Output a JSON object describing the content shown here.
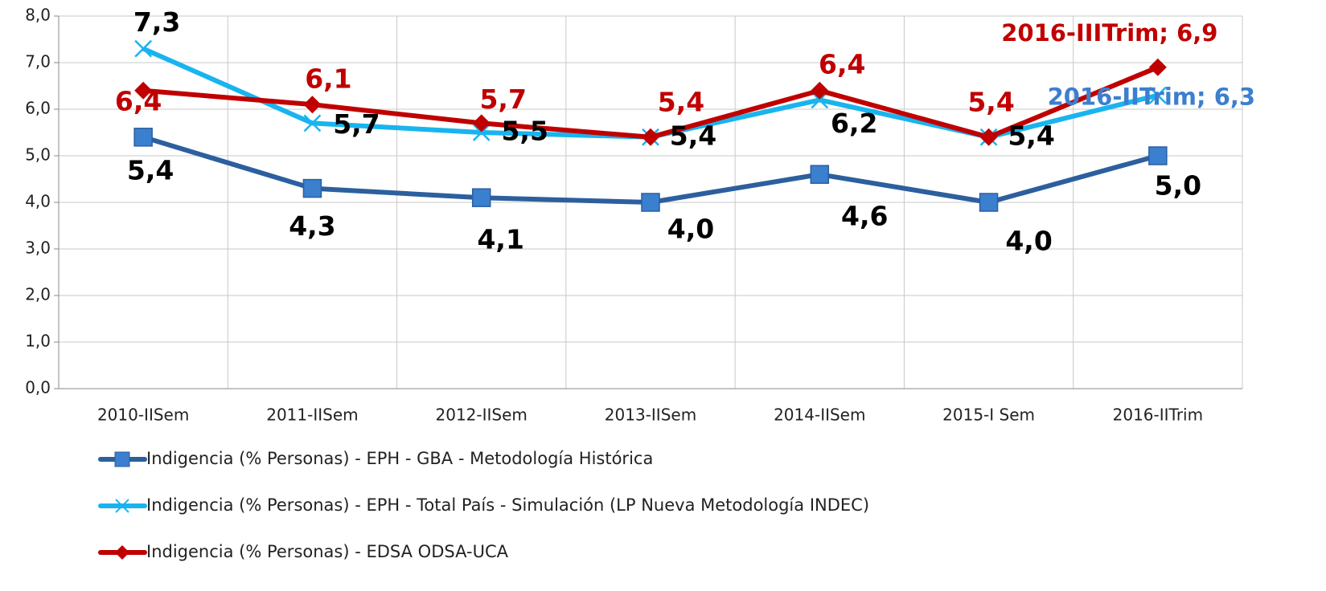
{
  "chart_data": {
    "type": "line",
    "categories": [
      "2010-IISem",
      "2011-IISem",
      "2012-IISem",
      "2013-IISem",
      "2014-IISem",
      "2015-I Sem",
      "2016-IITrim"
    ],
    "series": [
      {
        "name": "Indigencia (% Personas) - EPH - GBA - Metodología Histórica",
        "color": "#2c5f9e",
        "marker": "square",
        "marker_color": "#3b7fcf",
        "values": [
          5.4,
          4.3,
          4.1,
          4.0,
          4.6,
          4.0,
          5.0
        ],
        "value_labels": [
          "5,4",
          "4,3",
          "4,1",
          "4,0",
          "4,6",
          "4,0",
          "5,0"
        ]
      },
      {
        "name": "Indigencia (% Personas) - EPH - Total País - Simulación (LP Nueva Metodología INDEC)",
        "color": "#19b4ef",
        "marker": "x",
        "marker_color": "#19b4ef",
        "values": [
          7.3,
          5.7,
          5.5,
          5.4,
          6.2,
          5.4,
          6.3
        ],
        "value_labels": [
          "7,3",
          "5,7",
          "5,5",
          "5,4",
          "6,2",
          "5,4",
          "2016-IITrim; 6,3"
        ]
      },
      {
        "name": "Indigencia (% Personas) - EDSA ODSA-UCA",
        "color": "#c00000",
        "marker": "diamond",
        "marker_color": "#c00000",
        "values": [
          6.4,
          6.1,
          5.7,
          5.4,
          6.4,
          5.4,
          6.9
        ],
        "value_labels": [
          "6,4",
          "6,1",
          "5,7",
          "5,4",
          "6,4",
          "5,4",
          "2016-IIITrim; 6,9"
        ]
      }
    ],
    "ylim": [
      0,
      8
    ],
    "yticks": [
      {
        "value": 0,
        "label": "0,0"
      },
      {
        "value": 1,
        "label": "1,0"
      },
      {
        "value": 2,
        "label": "2,0"
      },
      {
        "value": 3,
        "label": "3,0"
      },
      {
        "value": 4,
        "label": "4,0"
      },
      {
        "value": 5,
        "label": "5,0"
      },
      {
        "value": 6,
        "label": "6,0"
      },
      {
        "value": 7,
        "label": "7,0"
      },
      {
        "value": 8,
        "label": "8,0"
      }
    ],
    "grid": true,
    "legend": "bottom"
  }
}
